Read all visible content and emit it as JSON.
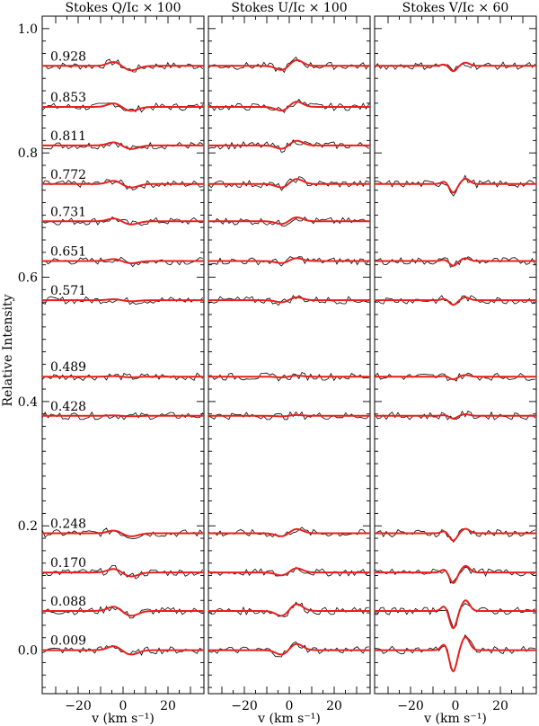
{
  "chart_data": {
    "type": "line",
    "ylabel": "Relative Intensity",
    "xlabel": "v (km s⁻¹)",
    "ylim": [
      -0.07,
      1.02
    ],
    "xlim": [
      -36,
      36
    ],
    "y_ticks": [
      "0.0",
      "0.2",
      "0.4",
      "0.6",
      "0.8",
      "1.0"
    ],
    "x_ticks": [
      "−20",
      "0",
      "20"
    ],
    "phases": [
      {
        "label": "0.928",
        "offset": 0.94,
        "Q": 1.0,
        "U": 1.1,
        "V": 0.8
      },
      {
        "label": "0.853",
        "offset": 0.874,
        "Q": 0.9,
        "U": 1.0,
        "V": null
      },
      {
        "label": "0.811",
        "offset": 0.812,
        "Q": 0.8,
        "U": 0.9,
        "V": null
      },
      {
        "label": "0.772",
        "offset": 0.75,
        "Q": 0.8,
        "U": 0.95,
        "V": 1.3
      },
      {
        "label": "0.731",
        "offset": 0.69,
        "Q": 0.7,
        "U": 0.75,
        "V": null
      },
      {
        "label": "0.651",
        "offset": 0.626,
        "Q": 0.5,
        "U": 0.55,
        "V": 0.7
      },
      {
        "label": "0.571",
        "offset": 0.563,
        "Q": 0.25,
        "U": 0.55,
        "V": 0.7
      },
      {
        "label": "0.489",
        "offset": 0.44,
        "Q": 0.15,
        "U": 0.2,
        "V": 0.4
      },
      {
        "label": "0.428",
        "offset": 0.377,
        "Q": 0.1,
        "U": 0.15,
        "V": 0.4
      },
      {
        "label": "0.248",
        "offset": 0.188,
        "Q": 0.7,
        "U": 0.8,
        "V": 1.1
      },
      {
        "label": "0.170",
        "offset": 0.125,
        "Q": 0.9,
        "U": 0.8,
        "V": 1.6
      },
      {
        "label": "0.088",
        "offset": 0.063,
        "Q": 1.1,
        "U": 1.3,
        "V": 2.6
      },
      {
        "label": "0.009",
        "offset": 0.0,
        "Q": 1.0,
        "U": 1.2,
        "V": 3.2
      }
    ],
    "panels": [
      {
        "key": "Q",
        "title": "Stokes Q/Iᴄ × 100"
      },
      {
        "key": "U",
        "title": "Stokes U/Iᴄ × 100"
      },
      {
        "key": "V",
        "title": "Stokes V/Iᴄ × 60"
      }
    ],
    "colors": {
      "observed": "#000000",
      "model": "#e8201c"
    }
  }
}
